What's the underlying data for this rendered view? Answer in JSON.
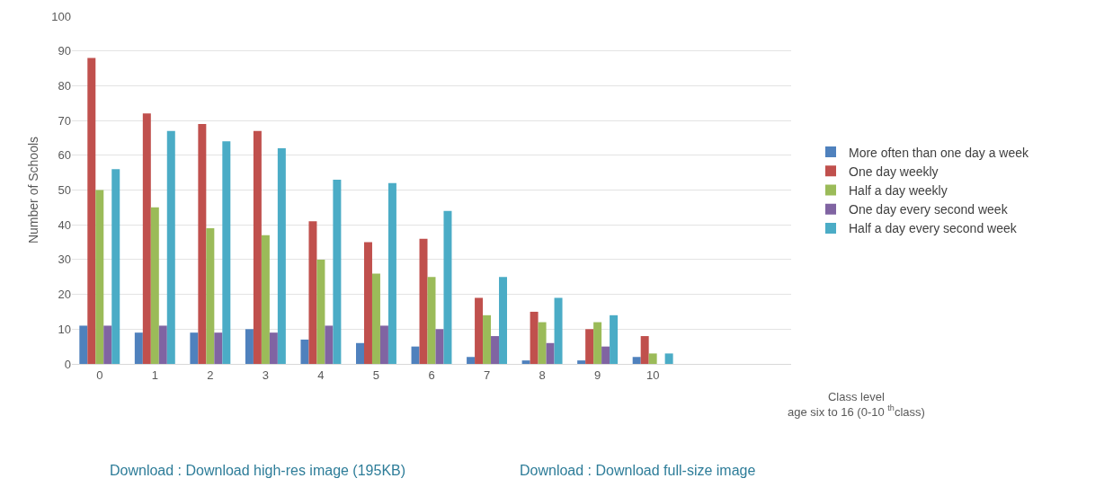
{
  "chart_data": {
    "type": "bar",
    "categories": [
      "0",
      "1",
      "2",
      "3",
      "4",
      "5",
      "6",
      "7",
      "8",
      "9",
      "10",
      null,
      null
    ],
    "series": [
      {
        "name": "More often than one day a week",
        "color": "#4f81bd",
        "values": [
          11,
          9,
          9,
          10,
          7,
          6,
          5,
          2,
          1,
          1,
          2,
          null,
          null
        ]
      },
      {
        "name": "One day weekly",
        "color": "#c0504d",
        "values": [
          88,
          72,
          69,
          67,
          41,
          35,
          36,
          19,
          15,
          10,
          8,
          null,
          null
        ]
      },
      {
        "name": "Half a day weekly",
        "color": "#9bbb59",
        "values": [
          50,
          45,
          39,
          37,
          30,
          26,
          25,
          14,
          12,
          12,
          3,
          null,
          null
        ]
      },
      {
        "name": "One day every second week",
        "color": "#8064a2",
        "values": [
          11,
          11,
          9,
          9,
          11,
          11,
          10,
          8,
          6,
          5,
          0,
          null,
          null
        ]
      },
      {
        "name": "Half a day every second week",
        "color": "#4bacc6",
        "values": [
          56,
          67,
          64,
          62,
          53,
          52,
          44,
          25,
          19,
          14,
          3,
          null,
          null
        ]
      }
    ],
    "ylabel": "Number of Schools",
    "xlabel": "Class level\nage six to 16 (0-10 $^{th}$class)",
    "ylim": [
      0,
      100
    ],
    "yticks": [
      0,
      10,
      20,
      30,
      40,
      50,
      60,
      70,
      80,
      90,
      100
    ],
    "grid": "y",
    "legend": "right",
    "annotations": [
      "Download : Download high-res image (195KB)",
      "Download : Download full-size image"
    ]
  }
}
